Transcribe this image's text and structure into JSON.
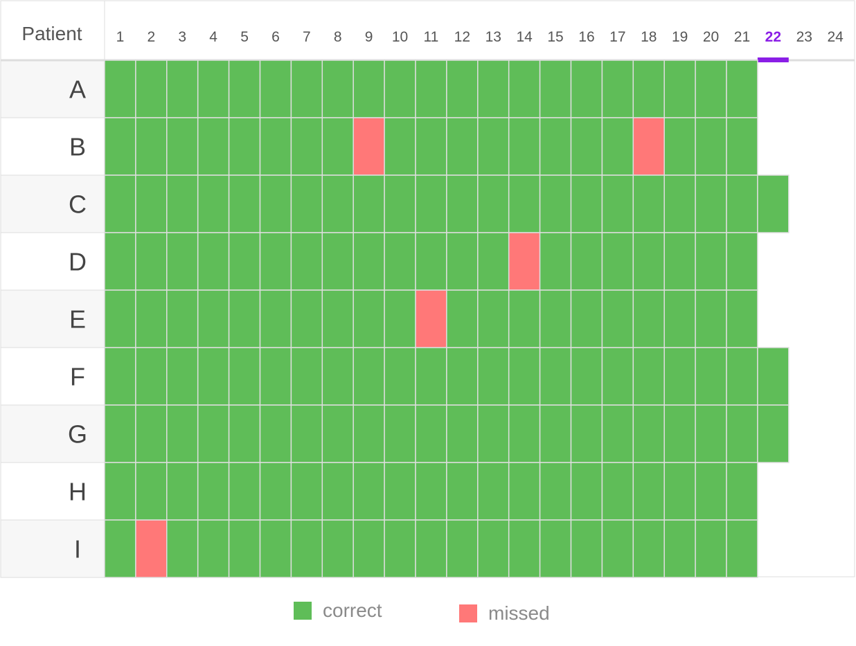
{
  "chart_data": {
    "type": "heatmap",
    "row_header": "Patient",
    "columns": [
      "1",
      "2",
      "3",
      "4",
      "5",
      "6",
      "7",
      "8",
      "9",
      "10",
      "11",
      "12",
      "13",
      "14",
      "15",
      "16",
      "17",
      "18",
      "19",
      "20",
      "21",
      "22",
      "23",
      "24"
    ],
    "highlighted_column": "22",
    "rows": [
      "A",
      "B",
      "C",
      "D",
      "E",
      "F",
      "G",
      "H",
      "I"
    ],
    "status_legend": {
      "c": "correct",
      "m": "missed"
    },
    "cells": [
      [
        "c",
        "c",
        "c",
        "c",
        "c",
        "c",
        "c",
        "c",
        "c",
        "c",
        "c",
        "c",
        "c",
        "c",
        "c",
        "c",
        "c",
        "c",
        "c",
        "c",
        "c"
      ],
      [
        "c",
        "c",
        "c",
        "c",
        "c",
        "c",
        "c",
        "c",
        "m",
        "c",
        "c",
        "c",
        "c",
        "c",
        "c",
        "c",
        "c",
        "m",
        "c",
        "c",
        "c"
      ],
      [
        "c",
        "c",
        "c",
        "c",
        "c",
        "c",
        "c",
        "c",
        "c",
        "c",
        "c",
        "c",
        "c",
        "c",
        "c",
        "c",
        "c",
        "c",
        "c",
        "c",
        "c",
        "c"
      ],
      [
        "c",
        "c",
        "c",
        "c",
        "c",
        "c",
        "c",
        "c",
        "c",
        "c",
        "c",
        "c",
        "c",
        "m",
        "c",
        "c",
        "c",
        "c",
        "c",
        "c",
        "c"
      ],
      [
        "c",
        "c",
        "c",
        "c",
        "c",
        "c",
        "c",
        "c",
        "c",
        "c",
        "m",
        "c",
        "c",
        "c",
        "c",
        "c",
        "c",
        "c",
        "c",
        "c",
        "c"
      ],
      [
        "c",
        "c",
        "c",
        "c",
        "c",
        "c",
        "c",
        "c",
        "c",
        "c",
        "c",
        "c",
        "c",
        "c",
        "c",
        "c",
        "c",
        "c",
        "c",
        "c",
        "c",
        "c"
      ],
      [
        "c",
        "c",
        "c",
        "c",
        "c",
        "c",
        "c",
        "c",
        "c",
        "c",
        "c",
        "c",
        "c",
        "c",
        "c",
        "c",
        "c",
        "c",
        "c",
        "c",
        "c",
        "c"
      ],
      [
        "c",
        "c",
        "c",
        "c",
        "c",
        "c",
        "c",
        "c",
        "c",
        "c",
        "c",
        "c",
        "c",
        "c",
        "c",
        "c",
        "c",
        "c",
        "c",
        "c",
        "c"
      ],
      [
        "c",
        "m",
        "c",
        "c",
        "c",
        "c",
        "c",
        "c",
        "c",
        "c",
        "c",
        "c",
        "c",
        "c",
        "c",
        "c",
        "c",
        "c",
        "c",
        "c",
        "c"
      ]
    ],
    "legend": [
      {
        "key": "c",
        "label": "correct",
        "color": "#5fbd58"
      },
      {
        "key": "m",
        "label": "missed",
        "color": "#ff7878"
      }
    ],
    "colors": {
      "highlight": "#8a1ee6",
      "grid_line": "#dddddd",
      "row_header_bg": "#f7f7f7",
      "text": "#444444"
    }
  }
}
